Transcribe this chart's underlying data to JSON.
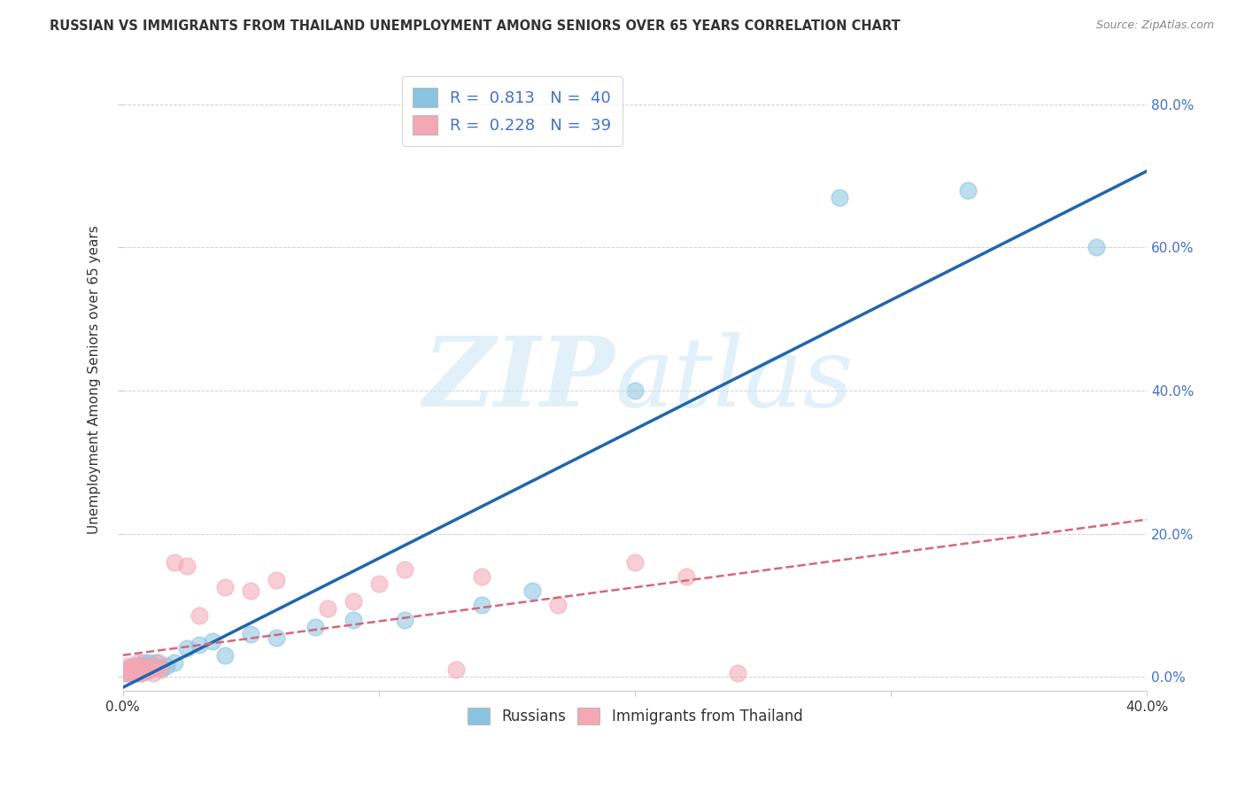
{
  "title": "RUSSIAN VS IMMIGRANTS FROM THAILAND UNEMPLOYMENT AMONG SENIORS OVER 65 YEARS CORRELATION CHART",
  "source": "Source: ZipAtlas.com",
  "ylabel": "Unemployment Among Seniors over 65 years",
  "xlim": [
    0.0,
    0.4
  ],
  "ylim": [
    -0.02,
    0.85
  ],
  "xticks": [
    0.0,
    0.1,
    0.2,
    0.3,
    0.4
  ],
  "yticks": [
    0.0,
    0.2,
    0.4,
    0.6,
    0.8
  ],
  "background_color": "#ffffff",
  "russian_color": "#89c4e1",
  "thailand_color": "#f4a7b5",
  "russian_line_color": "#2166ac",
  "thailand_line_color": "#d4687a",
  "right_tick_color": "#4472c4",
  "russian_x": [
    0.001,
    0.002,
    0.002,
    0.003,
    0.003,
    0.004,
    0.004,
    0.005,
    0.005,
    0.006,
    0.006,
    0.007,
    0.007,
    0.008,
    0.008,
    0.009,
    0.009,
    0.01,
    0.01,
    0.011,
    0.012,
    0.013,
    0.015,
    0.017,
    0.02,
    0.025,
    0.03,
    0.035,
    0.04,
    0.05,
    0.06,
    0.075,
    0.09,
    0.11,
    0.14,
    0.16,
    0.2,
    0.28,
    0.33,
    0.38
  ],
  "russian_y": [
    0.005,
    0.008,
    0.01,
    0.005,
    0.012,
    0.008,
    0.015,
    0.01,
    0.005,
    0.012,
    0.008,
    0.015,
    0.005,
    0.01,
    0.02,
    0.008,
    0.015,
    0.01,
    0.02,
    0.012,
    0.015,
    0.02,
    0.012,
    0.015,
    0.02,
    0.04,
    0.045,
    0.05,
    0.03,
    0.06,
    0.055,
    0.07,
    0.08,
    0.08,
    0.1,
    0.12,
    0.4,
    0.67,
    0.68,
    0.6
  ],
  "thailand_x": [
    0.001,
    0.001,
    0.002,
    0.002,
    0.003,
    0.003,
    0.004,
    0.004,
    0.005,
    0.005,
    0.006,
    0.006,
    0.007,
    0.007,
    0.008,
    0.008,
    0.009,
    0.01,
    0.011,
    0.012,
    0.013,
    0.014,
    0.015,
    0.02,
    0.025,
    0.03,
    0.04,
    0.05,
    0.06,
    0.08,
    0.09,
    0.1,
    0.11,
    0.13,
    0.14,
    0.17,
    0.2,
    0.22,
    0.24
  ],
  "thailand_y": [
    0.005,
    0.01,
    0.008,
    0.015,
    0.005,
    0.012,
    0.008,
    0.01,
    0.015,
    0.005,
    0.02,
    0.008,
    0.012,
    0.005,
    0.01,
    0.015,
    0.008,
    0.01,
    0.015,
    0.005,
    0.012,
    0.02,
    0.01,
    0.16,
    0.155,
    0.085,
    0.125,
    0.12,
    0.135,
    0.095,
    0.105,
    0.13,
    0.15,
    0.01,
    0.14,
    0.1,
    0.16,
    0.14,
    0.005
  ]
}
